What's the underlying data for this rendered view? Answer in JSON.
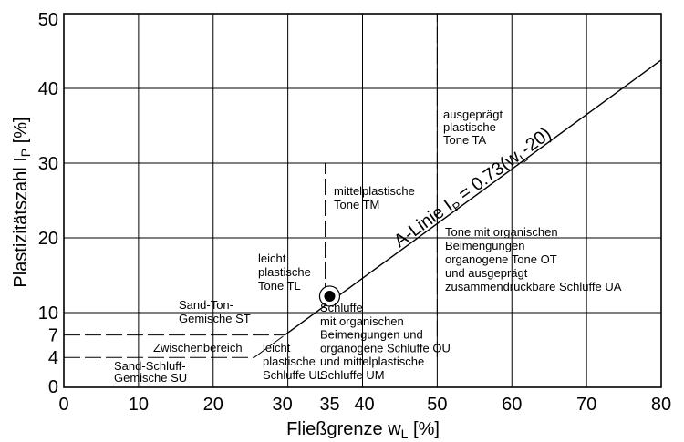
{
  "chart_data": {
    "type": "line",
    "xlabel": "Fließgrenze w",
    "xlabel_sub": "L",
    "xlabel_unit": " [%]",
    "ylabel": "Plastizitätszahl I",
    "ylabel_sub": "P",
    "ylabel_unit": " [%]",
    "xlim": [
      0,
      80
    ],
    "ylim": [
      0,
      50
    ],
    "xticks": [
      0,
      10,
      20,
      30,
      35,
      40,
      50,
      60,
      70,
      80
    ],
    "yticks": [
      0,
      4,
      7,
      10,
      20,
      30,
      40,
      50
    ],
    "grid_x": [
      10,
      20,
      30,
      40,
      50,
      60,
      70
    ],
    "grid_y": [
      10,
      20,
      30,
      40
    ],
    "a_line": {
      "label": "A-Linie I",
      "label_sub": "P",
      "label_mid": " = 0.73(w",
      "label_sub2": "L",
      "label_end": "-20)",
      "points": [
        [
          29.6,
          7
        ],
        [
          80,
          43.8
        ]
      ]
    },
    "dashed_lines": [
      {
        "points": [
          [
            0,
            7
          ],
          [
            29.6,
            7
          ]
        ]
      },
      {
        "points": [
          [
            0,
            4
          ],
          [
            25.5,
            4
          ],
          [
            29.6,
            7
          ]
        ]
      },
      {
        "points": [
          [
            35,
            11.7
          ],
          [
            35,
            30
          ]
        ]
      },
      {
        "points": [
          [
            50,
            4
          ],
          [
            50,
            50
          ]
        ]
      }
    ],
    "marked_point": {
      "x": 35.6,
      "y": 12.2
    },
    "regions": [
      {
        "lines": [
          "ausgeprägt",
          "plastische",
          "Tone TA"
        ]
      },
      {
        "lines": [
          "mittelplastische",
          "Tone TM"
        ]
      },
      {
        "lines": [
          "Tone mit organischen",
          "Beimengungen",
          "organogene Tone OT",
          "und ausgeprägt",
          "zusammendrückbare Schluffe UA"
        ]
      },
      {
        "lines": [
          "leicht",
          "plastische",
          "Tone TL"
        ]
      },
      {
        "lines": [
          "Sand-Ton-",
          "Gemische ST"
        ]
      },
      {
        "lines": [
          "Schluffe",
          "mit organischen",
          "Beimengungen und",
          "organogene Schluffe OU",
          "und mittelplastische",
          "Schluffe UM"
        ]
      },
      {
        "lines": [
          "Zwischenbereich"
        ]
      },
      {
        "lines": [
          "leicht",
          "plastische",
          "Schluffe UL"
        ]
      },
      {
        "lines": [
          "Sand-Schluff-",
          "Gemische SU"
        ]
      }
    ]
  }
}
